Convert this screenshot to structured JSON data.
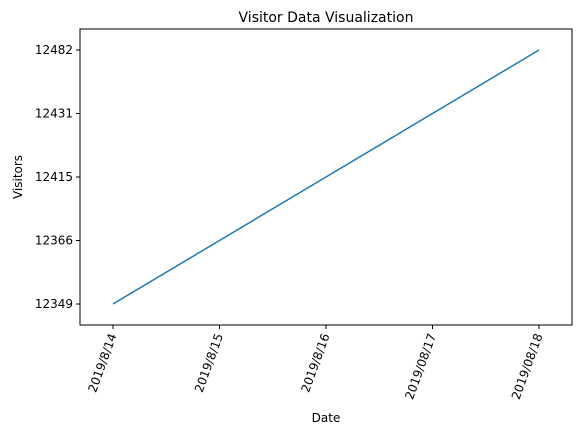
{
  "chart_data": {
    "type": "line",
    "title": "Visitor Data Visualization",
    "xlabel": "Date",
    "ylabel": "Visitors",
    "categories": [
      "2019/8/14",
      "2019/8/15",
      "2019/8/16",
      "2019/08/17",
      "2019/08/18"
    ],
    "y_ticks": [
      "12349",
      "12366",
      "12415",
      "12431",
      "12482"
    ],
    "series": [
      {
        "values": [
          "12349",
          "12366",
          "12415",
          "12431",
          "12482"
        ],
        "color": "#1f77b4"
      }
    ],
    "grid": false,
    "legend": "none"
  }
}
